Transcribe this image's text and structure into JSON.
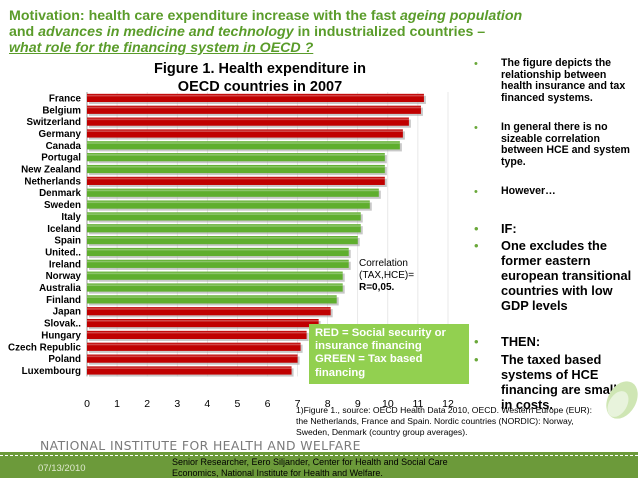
{
  "header": {
    "line1_a": "Motivation: health care expenditure increase with the fast ",
    "line1_b": "ageing population",
    "line2_a": "and ",
    "line2_b": "advances in medicine and technology",
    "line2_c": "  in industrialized countries –",
    "line3": "what role for the financing system in OECD ?"
  },
  "figure_title_1": "Figure 1. Health expenditure in",
  "figure_title_2": "OECD countries in 2007",
  "correlation": {
    "line1": "Correlation",
    "line2": "(TAX,HCE)=",
    "line3": "R=0,05."
  },
  "legend_text": {
    "red": "RED = Social security or insurance financing",
    "green": "GREEN = Tax based  financing"
  },
  "source_note": "1)Figure 1., source: OECD Health Data 2010, OECD. Western Europe (EUR): the Netherlands, France and Spain. Nordic countries (NORDIC): Norway, Sweden, Denmark (country group averages).",
  "bullets": [
    {
      "text": "The figure depicts the relationship between health insurance and tax financed systems.",
      "size": "sm"
    },
    {
      "text": "In general there is no sizeable correlation between HCE and system type.",
      "size": "sm"
    },
    {
      "text": "However…",
      "size": "sm"
    },
    {
      "text": "IF:",
      "size": "lg"
    },
    {
      "text": "One excludes the former eastern european transitional countries with low GDP levels",
      "size": "lg"
    },
    {
      "text": "THEN:",
      "size": "lg"
    },
    {
      "text": "The taxed based systems of HCE financing are smaller in costs.",
      "size": "lg"
    }
  ],
  "institute": "NATIONAL INSTITUTE FOR HEALTH AND WELFARE",
  "date": "07/13/2010",
  "footer_note": "Senior Researcher, Eero Siljander, Center for Health and Social Care Economics, National Institute for Health and Welfare.",
  "colors": {
    "red": "#c00000",
    "green": "#5fae2e",
    "header": "#5a9c2a",
    "footer": "#6c9a3a"
  },
  "chart_data": {
    "type": "bar",
    "orientation": "horizontal",
    "categories": [
      "France",
      "Belgium",
      "Switzerland",
      "Germany",
      "Canada",
      "Portugal",
      "New Zealand",
      "Netherlands",
      "Denmark",
      "Sweden",
      "Italy",
      "Iceland",
      "Spain",
      "United..",
      "Ireland",
      "Norway",
      "Australia",
      "Finland",
      "Japan",
      "Slovak..",
      "Hungary",
      "Czech Republic",
      "Poland",
      "Luxembourg"
    ],
    "values": [
      11.2,
      11.1,
      10.7,
      10.5,
      10.4,
      9.9,
      9.9,
      9.9,
      9.7,
      9.4,
      9.1,
      9.1,
      9.0,
      8.7,
      8.7,
      8.5,
      8.5,
      8.3,
      8.1,
      7.7,
      7.3,
      7.1,
      7.0,
      6.8
    ],
    "financing": [
      "red",
      "red",
      "red",
      "red",
      "green",
      "green",
      "green",
      "red",
      "green",
      "green",
      "green",
      "green",
      "green",
      "green",
      "green",
      "green",
      "green",
      "green",
      "red",
      "red",
      "red",
      "red",
      "red",
      "red"
    ],
    "xticks": [
      0,
      1,
      2,
      3,
      4,
      5,
      6,
      7,
      8,
      9,
      10,
      11,
      12
    ],
    "xlim": [
      0,
      12
    ]
  }
}
